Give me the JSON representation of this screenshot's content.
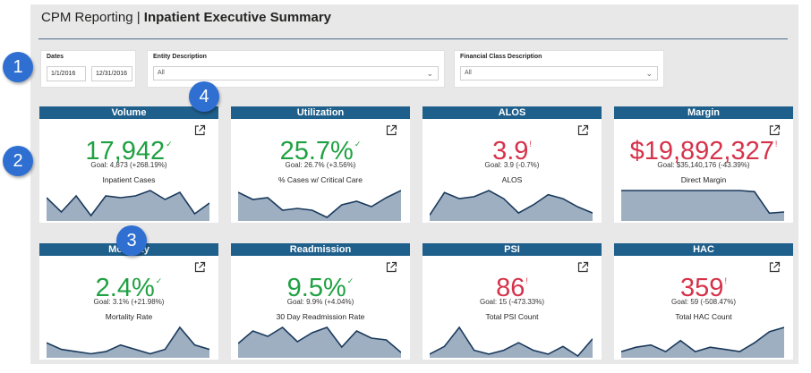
{
  "header": {
    "title_light": "CPM Reporting | ",
    "title_bold": "Inpatient Executive Summary"
  },
  "slicers": {
    "dates": {
      "title": "Dates",
      "start": "1/1/2016",
      "end": "12/31/2016"
    },
    "entity": {
      "title": "Entity Description",
      "value": "All"
    },
    "financial": {
      "title": "Financial Class Description",
      "value": "All"
    }
  },
  "cards": [
    {
      "title": "Volume",
      "value": "17,942",
      "status": "good",
      "goal": "Goal: 4,873 (+268.19%)",
      "metric": "Inpatient Cases",
      "trend": [
        12,
        4,
        13,
        2,
        13,
        12,
        13,
        16,
        11,
        15,
        3,
        9
      ]
    },
    {
      "title": "Utilization",
      "value": "25.7%",
      "status": "good",
      "goal": "Goal: 26.7% (+3.56%)",
      "metric": "% Cases w/ Critical Care",
      "trend": [
        15,
        11,
        12,
        5,
        6,
        5,
        1,
        8,
        10,
        7,
        12,
        16
      ]
    },
    {
      "title": "ALOS",
      "value": "3.9",
      "status": "bad",
      "goal": "Goal: 3.9 (-0.7%)",
      "metric": "ALOS",
      "trend": [
        2,
        13,
        10,
        11,
        14,
        10,
        3,
        7,
        12,
        10,
        6,
        3
      ]
    },
    {
      "title": "Margin",
      "value": "$19,892,327",
      "status": "bad",
      "goal": "Goal: $35,140,176 (-43.39%)",
      "metric": "Direct Margin",
      "trend": [
        24,
        24,
        24,
        24,
        24,
        24,
        24,
        24,
        24,
        23,
        5,
        6
      ]
    },
    {
      "title": "Mortality",
      "value": "2.4%",
      "status": "good",
      "goal": "Goal: 3.1% (+21.98%)",
      "metric": "Mortality Rate",
      "trend": [
        6,
        3,
        2,
        1,
        2,
        5,
        3,
        1,
        3,
        13,
        5,
        3
      ]
    },
    {
      "title": "Readmission",
      "value": "9.5%",
      "status": "good",
      "goal": "Goal: 9.9% (+4.04%)",
      "metric": "30 Day Readmission Rate",
      "trend": [
        7,
        14,
        11,
        16,
        8,
        13,
        16,
        5,
        14,
        10,
        9,
        2
      ]
    },
    {
      "title": "PSI",
      "value": "86",
      "status": "bad",
      "goal": "Goal: 15 (-473.33%)",
      "metric": "Total PSI Count",
      "trend": [
        1,
        5,
        15,
        3,
        1,
        3,
        7,
        3,
        1,
        5,
        0,
        9
      ]
    },
    {
      "title": "HAC",
      "value": "359",
      "status": "bad",
      "goal": "Goal: 59 (-508.47%)",
      "metric": "Total HAC Count",
      "trend": [
        2,
        4,
        5,
        2,
        7,
        2,
        4,
        3,
        2,
        6,
        11,
        13
      ]
    }
  ],
  "badges": [
    "1",
    "2",
    "3",
    "4"
  ],
  "colors": {
    "good": "#1fa142",
    "bad": "#d6334b",
    "header": "#1f5f8b",
    "sparkline": "#9eafc2",
    "badge": "#2e6fd1"
  }
}
